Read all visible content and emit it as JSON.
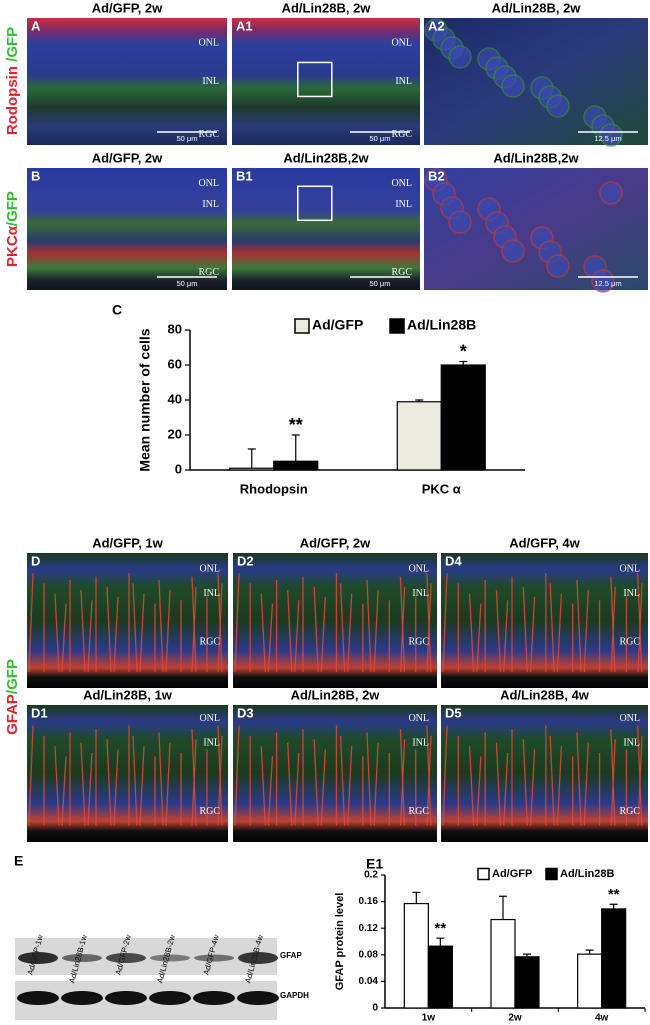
{
  "panels": [
    [
      {
        "letter": "A",
        "title": "Ad/GFP, 2w",
        "layers": [
          "ONL",
          "INL",
          "RGC"
        ],
        "scale": "50 μm"
      },
      {
        "letter": "A1",
        "title": "Ad/Lin28B, 2w",
        "layers": [
          "ONL",
          "INL",
          "RGC"
        ],
        "scale": "50 μm"
      },
      {
        "letter": "A2",
        "title": "Ad/Lin28B, 2w",
        "scale": "12.5 μm"
      }
    ],
    [
      {
        "letter": "B",
        "title": "Ad/GFP, 2w",
        "layers": [
          "ONL",
          "INL",
          "RGC"
        ],
        "scale": "50 μm"
      },
      {
        "letter": "B1",
        "title": "Ad/Lin28B,2w",
        "layers": [
          "ONL",
          "INL",
          "RGC"
        ],
        "scale": "50 μm"
      },
      {
        "letter": "B2",
        "title": "Ad/Lin28B,2w",
        "scale": "12.5 μm"
      }
    ],
    [
      {
        "letter": "D",
        "title": "Ad/GFP, 1w",
        "layers": [
          "ONL",
          "INL",
          "RGC"
        ]
      },
      {
        "letter": "D2",
        "title": "Ad/GFP, 2w",
        "layers": [
          "ONL",
          "INL",
          "RGC"
        ]
      },
      {
        "letter": "D4",
        "title": "Ad/GFP, 4w",
        "layers": [
          "ONL",
          "INL",
          "RGC"
        ]
      }
    ],
    [
      {
        "letter": "D1",
        "title": "Ad/Lin28B, 1w",
        "layers": [
          "ONL",
          "INL",
          "RGC"
        ]
      },
      {
        "letter": "D3",
        "title": "Ad/Lin28B, 2w",
        "layers": [
          "ONL",
          "INL",
          "RGC"
        ]
      },
      {
        "letter": "D5",
        "title": "Ad/Lin28B, 4w",
        "layers": [
          "ONL",
          "INL",
          "RGC"
        ]
      }
    ]
  ],
  "side_labels": [
    [
      {
        "text": "Rodopsin",
        "color": "#e3222b"
      },
      {
        "text": " /GFP",
        "color": "#2fbf2f"
      }
    ],
    [
      {
        "text": "PKCα",
        "color": "#e3222b"
      },
      {
        "text": "/GFP",
        "color": "#2fbf2f"
      }
    ],
    [
      {
        "text": "GFAP",
        "color": "#e3222b"
      },
      {
        "text": "/GFP",
        "color": "#2fbf2f"
      }
    ]
  ],
  "blot": {
    "letter": "E",
    "lanes": [
      "Ad/GFP-1w",
      "Ad/Lin28B-1w",
      "Ad/GFP-2w",
      "Ad/Lin28B-2w",
      "Ad/GFP-4w",
      "Ad/Lin28B-4w"
    ],
    "bands": [
      "GFAP",
      "GAPDH"
    ]
  },
  "chart_data": [
    {
      "type": "bar",
      "letter": "C",
      "y_label": "Mean number of cells",
      "categories": [
        "Rhodopsin",
        "PKC α"
      ],
      "series": [
        {
          "name": "Ad/GFP",
          "color": "#ebebdf",
          "values": [
            1,
            39
          ],
          "errors": [
            11,
            1
          ]
        },
        {
          "name": "Ad/Lin28B",
          "color": "#000000",
          "values": [
            5,
            60
          ],
          "errors": [
            15,
            2
          ]
        }
      ],
      "annotations": [
        {
          "text": "**",
          "category": "Rhodopsin",
          "series": "Ad/Lin28B"
        },
        {
          "text": "*",
          "category": "PKC α",
          "series": "Ad/Lin28B"
        }
      ],
      "ylim": [
        0,
        80
      ],
      "yticks": [
        0,
        20,
        40,
        60,
        80
      ]
    },
    {
      "type": "bar",
      "letter": "E1",
      "y_label": "GFAP protein level",
      "categories": [
        "1w",
        "2w",
        "4w"
      ],
      "series": [
        {
          "name": "Ad/GFP",
          "color": "#ffffff",
          "values": [
            0.157,
            0.133,
            0.081
          ],
          "errors": [
            0.017,
            0.035,
            0.006
          ]
        },
        {
          "name": "Ad/Lin28B",
          "color": "#000000",
          "values": [
            0.093,
            0.077,
            0.149
          ],
          "errors": [
            0.012,
            0.004,
            0.007
          ]
        }
      ],
      "annotations": [
        {
          "text": "**",
          "category": "1w",
          "series": "Ad/Lin28B"
        },
        {
          "text": "**",
          "category": "4w",
          "series": "Ad/Lin28B"
        }
      ],
      "ylim": [
        0,
        0.2
      ],
      "yticks": [
        0,
        0.04,
        0.08,
        0.12,
        0.16,
        0.2
      ]
    }
  ]
}
